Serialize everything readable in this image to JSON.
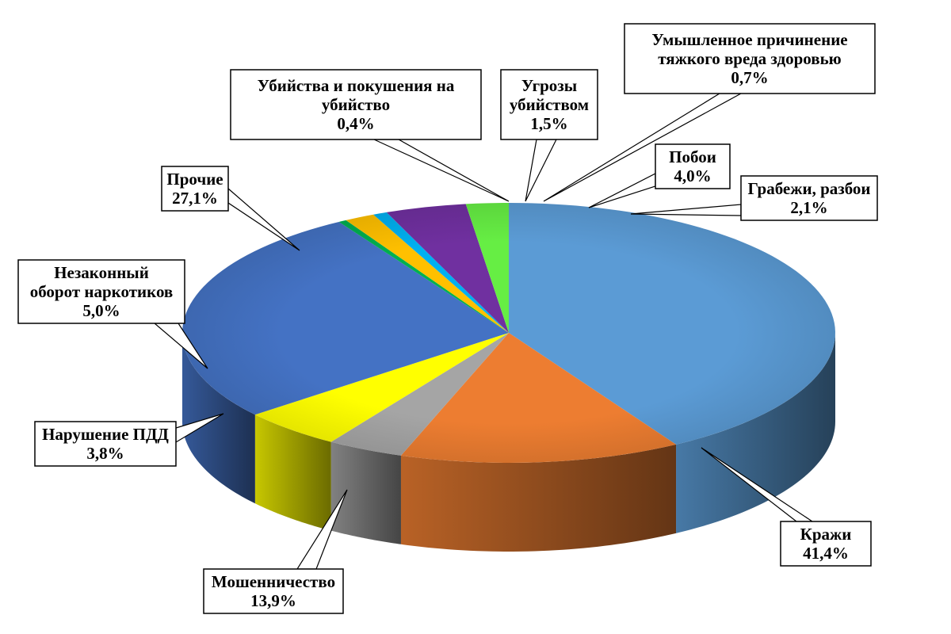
{
  "chart_data": {
    "type": "pie",
    "style": "3d",
    "title": "",
    "slices": [
      {
        "name": "Кражи",
        "label_lines": [
          "Кражи"
        ],
        "value": 41.4,
        "value_label": "41,4%",
        "color": "#5B9BD5"
      },
      {
        "name": "Мошенничество",
        "label_lines": [
          "Мошенничество"
        ],
        "value": 13.9,
        "value_label": "13,9%",
        "color": "#ED7D31"
      },
      {
        "name": "Нарушение ПДД",
        "label_lines": [
          "Нарушение ПДД"
        ],
        "value": 3.8,
        "value_label": "3,8%",
        "color": "#A5A5A5"
      },
      {
        "name": "Незаконный оборот наркотиков",
        "label_lines": [
          "Незаконный",
          "оборот наркотиков"
        ],
        "value": 5.0,
        "value_label": "5,0%",
        "color": "#FFFF00"
      },
      {
        "name": "Прочие",
        "label_lines": [
          "Прочие"
        ],
        "value": 27.1,
        "value_label": "27,1%",
        "color": "#4472C4"
      },
      {
        "name": "Убийства и покушения на убийство",
        "label_lines": [
          "Убийства и покушения на",
          "убийство"
        ],
        "value": 0.4,
        "value_label": "0,4%",
        "color": "#00B050"
      },
      {
        "name": "Угрозы убийством",
        "label_lines": [
          "Угрозы",
          "убийством"
        ],
        "value": 1.5,
        "value_label": "1,5%",
        "color": "#FFC000"
      },
      {
        "name": "Умышленное причинение тяжкого вреда здоровью",
        "label_lines": [
          "Умышленное причинение",
          "тяжкого вреда здоровью"
        ],
        "value": 0.7,
        "value_label": "0,7%",
        "color": "#00B0F0"
      },
      {
        "name": "Побои",
        "label_lines": [
          "Побои"
        ],
        "value": 4.0,
        "value_label": "4,0%",
        "color": "#7030A0"
      },
      {
        "name": "Грабежи, разбои",
        "label_lines": [
          "Грабежи, разбои"
        ],
        "value": 2.1,
        "value_label": "2,1%",
        "color": "#66EE44"
      }
    ]
  }
}
